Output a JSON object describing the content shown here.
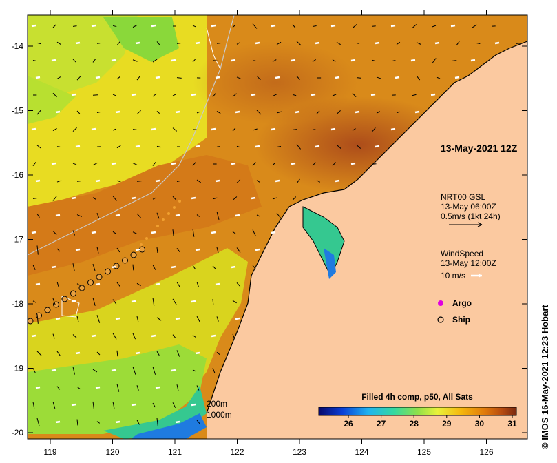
{
  "map": {
    "timestamp": "13-May-2021 12Z",
    "lat_ticks": [
      "-14",
      "-15",
      "-16",
      "-17",
      "-18",
      "-19",
      "-20"
    ],
    "lon_ticks": [
      "119",
      "120",
      "121",
      "122",
      "123",
      "124",
      "125",
      "126"
    ],
    "currents_legend": {
      "line1": "NRT00 GSL",
      "line2": "13-May 06:00Z",
      "line3": "0.5m/s (1kt 24h)"
    },
    "wind_legend": {
      "line1": "WindSpeed",
      "line2": "13-May 12:00Z",
      "line3": "10 m/s"
    },
    "markers_legend": {
      "argo": "Argo",
      "ship": "Ship"
    },
    "isobaths": {
      "shallow": "200m",
      "deep": "1000m"
    },
    "colorbar": {
      "title": "Filled 4h comp, p50, All Sats",
      "tick_labels": [
        "26",
        "27",
        "28",
        "29",
        "30",
        "31"
      ],
      "colors": [
        "#08086b",
        "#0a3fd6",
        "#1fb3f0",
        "#35d9a0",
        "#8fe04a",
        "#e8f23a",
        "#f5b70d",
        "#e07a0c",
        "#b54a10",
        "#7a2a10"
      ]
    },
    "credit": "© IMOS 16-May-2021 12:23 Hobart",
    "colors": {
      "land": "#fbc9a0",
      "sst_warm": "#d98a1a",
      "sst_hot": "#b8561a",
      "sst_cool": "#f0e020",
      "sst_cold": "#78d83a",
      "argo": "#e000e0",
      "ship_fill": "#e8a040"
    }
  }
}
